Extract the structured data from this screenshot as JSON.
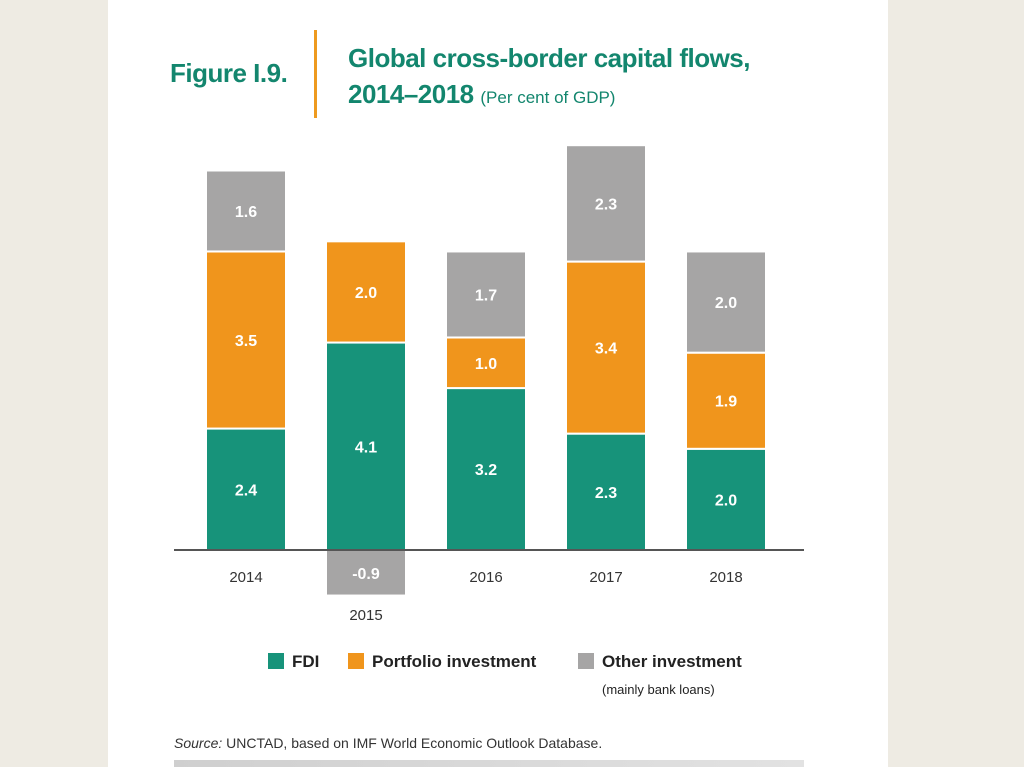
{
  "figure": {
    "label": "Figure I.9.",
    "title": "Global cross-border capital flows,",
    "title_line2": "2014–2018",
    "subtitle": "(Per cent of GDP)"
  },
  "chart_data": {
    "type": "bar",
    "stacked": true,
    "title": "Global cross-border capital flows, 2014–2018",
    "ylabel": "Per cent of GDP",
    "categories": [
      "2014",
      "2015",
      "2016",
      "2017",
      "2018"
    ],
    "series": [
      {
        "name": "FDI",
        "color": "#17937a",
        "values": [
          2.4,
          4.1,
          3.2,
          2.3,
          2.0
        ],
        "labels": [
          "2.4",
          "4.1",
          "3.2",
          "2.3",
          "2.0"
        ]
      },
      {
        "name": "Portfolio investment",
        "color": "#f0951c",
        "values": [
          3.5,
          2.0,
          1.0,
          3.4,
          1.9
        ],
        "labels": [
          "3.5",
          "2.0",
          "1.0",
          "3.4",
          "1.9"
        ]
      },
      {
        "name": "Other investment",
        "sub": "(mainly bank loans)",
        "color": "#a6a5a5",
        "values": [
          1.6,
          -0.9,
          1.7,
          2.3,
          2.0
        ],
        "labels": [
          "1.6",
          "-0.9",
          "1.7",
          "2.3",
          "2.0"
        ]
      }
    ],
    "ylim": [
      -0.9,
      8.0
    ],
    "grid": false,
    "legend": "bottom"
  },
  "source": {
    "label": "Source:",
    "text": "UNCTAD, based on IMF World Economic Outlook Database."
  }
}
